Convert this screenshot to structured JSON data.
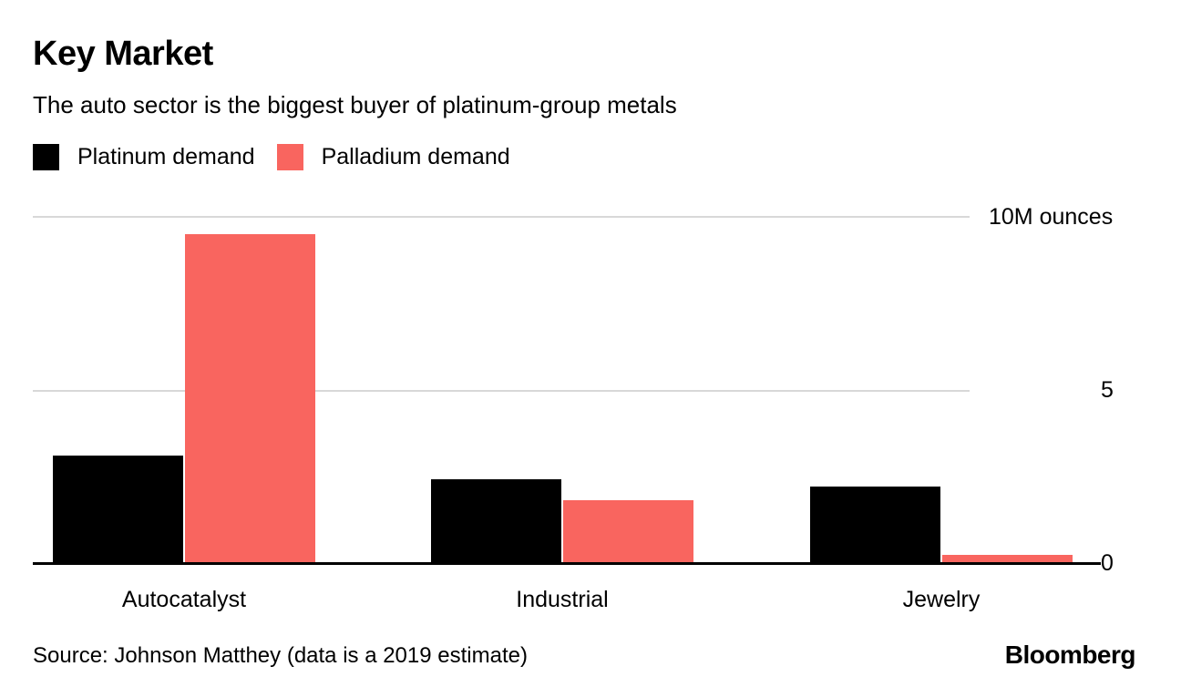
{
  "header": {
    "title": "Key Market",
    "subtitle": "The auto sector is the biggest buyer of platinum-group metals"
  },
  "legend": [
    {
      "label": "Platinum demand",
      "color": "#000000"
    },
    {
      "label": "Palladium demand",
      "color": "#f9655f"
    }
  ],
  "chart_data": {
    "type": "bar",
    "categories": [
      "Autocatalyst",
      "Industrial",
      "Jewelry"
    ],
    "series": [
      {
        "name": "Platinum demand",
        "color": "#000000",
        "values": [
          3.1,
          2.4,
          2.2
        ]
      },
      {
        "name": "Palladium demand",
        "color": "#f9655f",
        "values": [
          9.5,
          1.8,
          0.2
        ]
      }
    ],
    "title": "Key Market",
    "xlabel": "",
    "ylabel": "10M ounces",
    "ylim": [
      0,
      10
    ],
    "yticks": [
      {
        "value": 10,
        "label": "10M ounces"
      },
      {
        "value": 5,
        "label": "5"
      },
      {
        "value": 0,
        "label": "0"
      }
    ],
    "grid": true,
    "legend_position": "top"
  },
  "footer": {
    "source": "Source: Johnson Matthey (data is a 2019 estimate)",
    "brand": "Bloomberg"
  }
}
